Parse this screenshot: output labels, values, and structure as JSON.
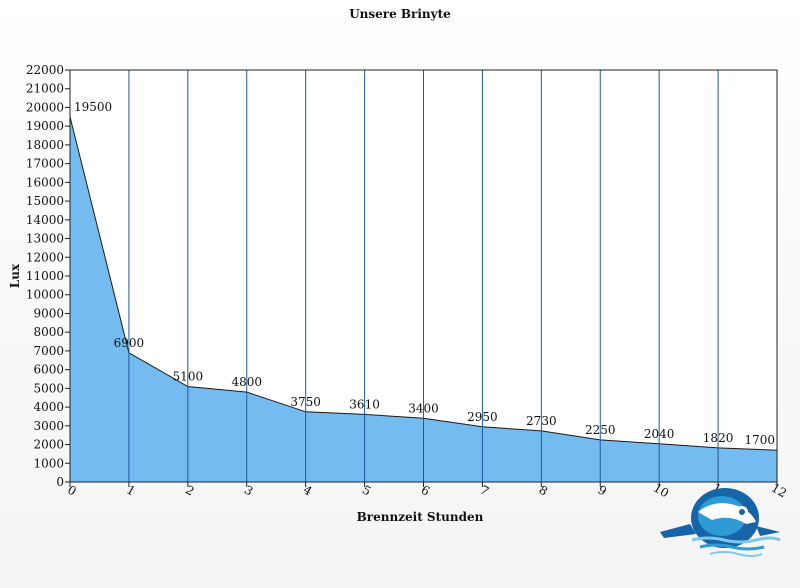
{
  "chart_data": {
    "type": "area",
    "title": "Unsere Brinyte",
    "xlabel": "Brennzeit Stunden",
    "ylabel": "Lux",
    "x": [
      0,
      1,
      2,
      3,
      4,
      5,
      6,
      7,
      8,
      9,
      10,
      11,
      12
    ],
    "values": [
      19500,
      6900,
      5100,
      4800,
      3750,
      3610,
      3400,
      2950,
      2730,
      2250,
      2040,
      1820,
      1700
    ],
    "data_labels": [
      "19500",
      "6900",
      "5100",
      "4800",
      "3750",
      "3610",
      "3400",
      "2950",
      "2730",
      "2250",
      "2040",
      "1820",
      "1700"
    ],
    "xlim": [
      0,
      12
    ],
    "ylim": [
      0,
      22000
    ],
    "ytick_step": 1000,
    "grid": "vertical",
    "colors": {
      "fill": "#74bcf0",
      "line": "#1a1a1a",
      "gridline": "#1e5a9a",
      "plot_bg": "#ffffff"
    }
  },
  "logo": {
    "icon": "diver-logo-icon",
    "colors": [
      "#1565a8",
      "#2e9ad6",
      "#7ec8ee"
    ]
  }
}
